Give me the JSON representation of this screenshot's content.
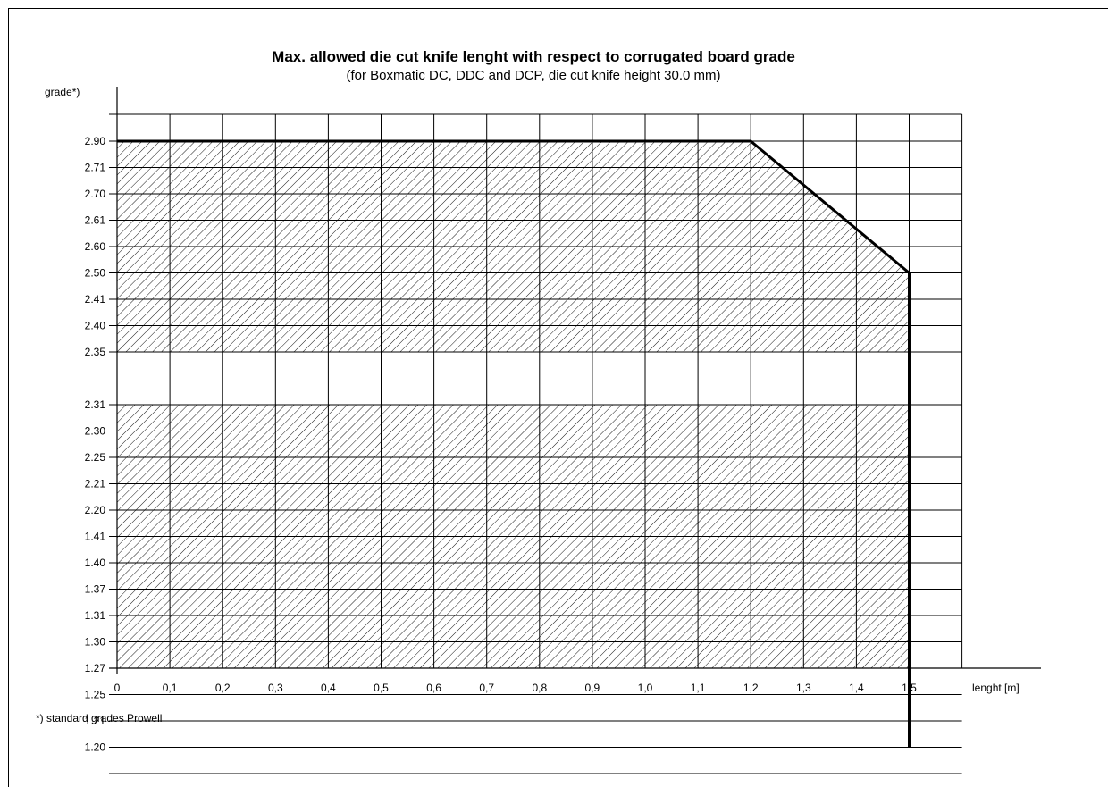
{
  "chart_data": {
    "type": "area",
    "title": "Max. allowed die cut knife lenght with respect to corrugated board grade",
    "subtitle": "(for Boxmatic DC, DDC and DCP, die cut knife height 30.0 mm)",
    "xlabel": "lenght [m]",
    "ylabel": "grade*)",
    "x_ticks": [
      "0",
      "0,1",
      "0,2",
      "0,3",
      "0,4",
      "0,5",
      "0,6",
      "0,7",
      "0,8",
      "0,9",
      "1,0",
      "1,1",
      "1,2",
      "1,3",
      "1,4",
      "1,5"
    ],
    "xlim": [
      0,
      1.6
    ],
    "y_categories": [
      "1.20",
      "1.21",
      "1.25",
      "1.27",
      "1.30",
      "1.31",
      "1.37",
      "1.40",
      "1.41",
      "2.20",
      "2.21",
      "2.25",
      "2.30",
      "2.31",
      "2.35",
      "2.40",
      "2.41",
      "2.50",
      "2.60",
      "2.61",
      "2.70",
      "2.71",
      "2.90"
    ],
    "max_length_boundary": [
      {
        "grade": "2.90",
        "length": 1.2
      },
      {
        "grade": "2.50",
        "length": 1.5
      },
      {
        "grade": "1.20",
        "length": 1.5
      }
    ],
    "grid": true,
    "fill": "hatched"
  },
  "footnote": "*)  standard grades Prowell",
  "colors": {
    "line": "#000000",
    "grid": "#000000",
    "background": "#ffffff"
  }
}
